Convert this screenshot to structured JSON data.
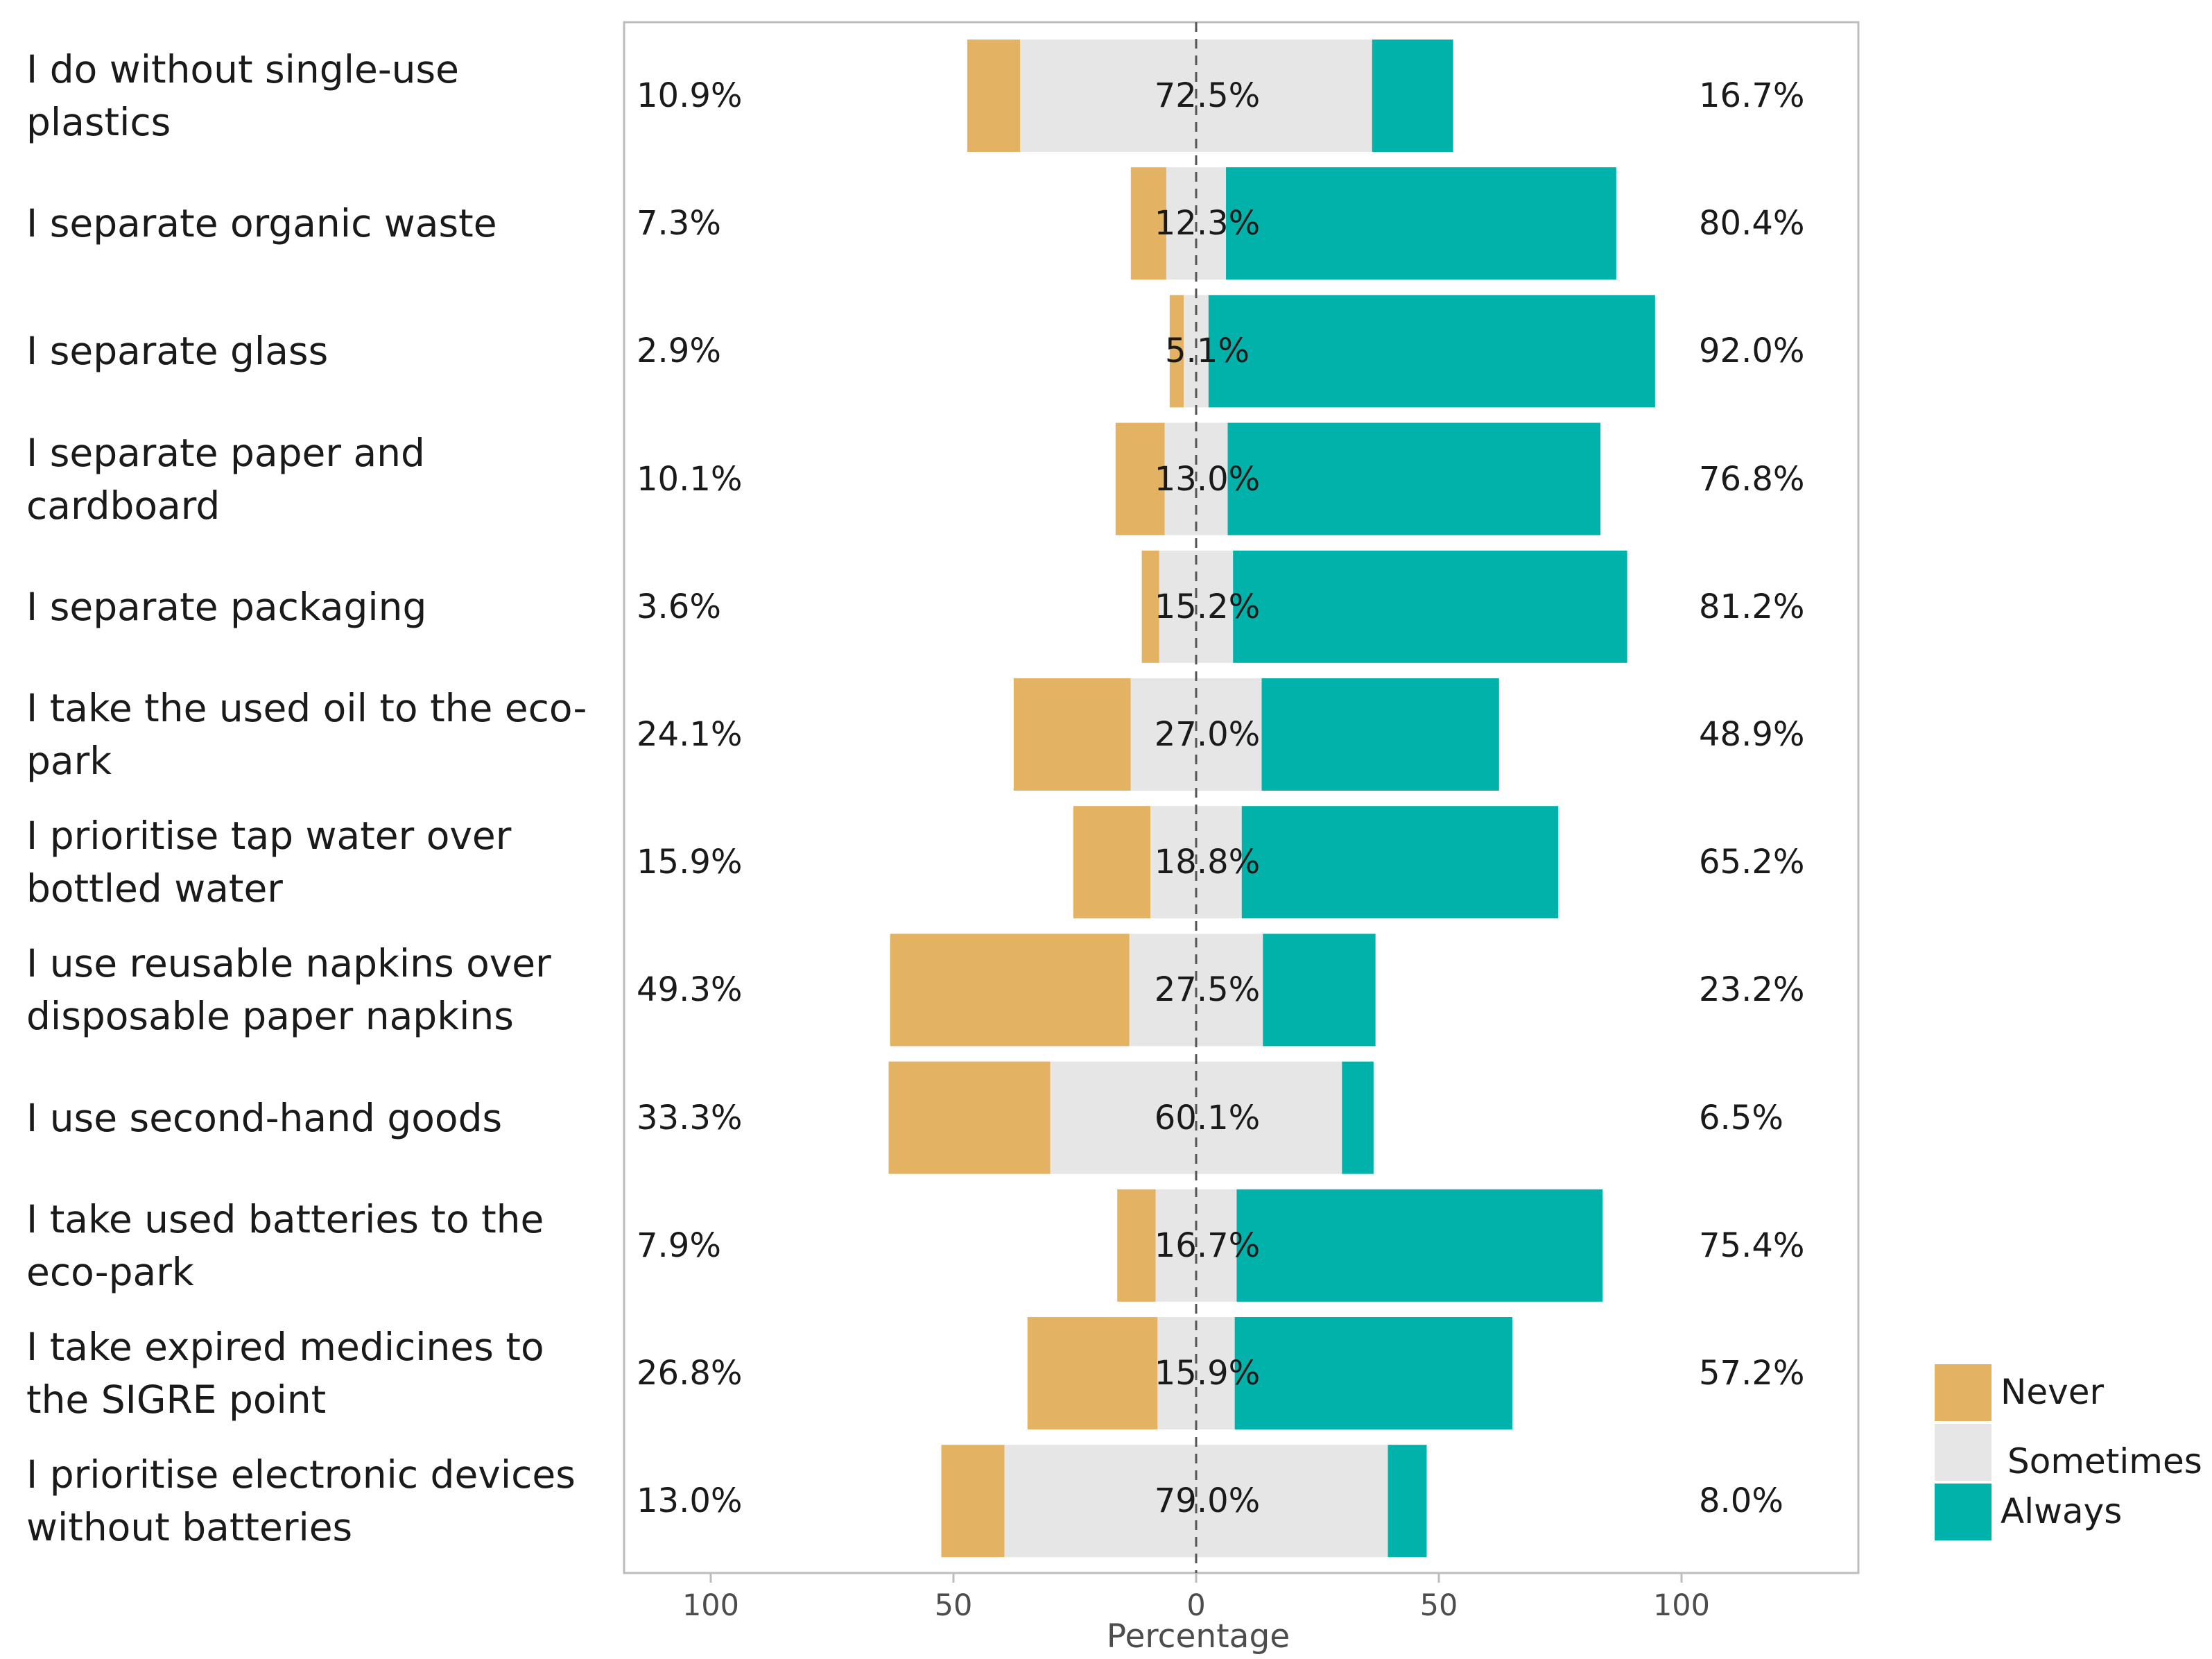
{
  "chart_data": {
    "type": "bar",
    "subtype": "diverging stacked bar",
    "xlabel": "Percentage",
    "xlim": [
      -100,
      100
    ],
    "x_ticks": [
      {
        "value": -100,
        "label": "100"
      },
      {
        "value": -50,
        "label": "50"
      },
      {
        "value": 0,
        "label": "0"
      },
      {
        "value": 50,
        "label": "50"
      },
      {
        "value": 100,
        "label": "100"
      }
    ],
    "legend_position": "right-bottom",
    "grid": false,
    "series": [
      {
        "name": "Never",
        "color": "#e3b262"
      },
      {
        "name": "Sometimes",
        "color": "#e6e6e6"
      },
      {
        "name": "Always",
        "color": "#00b2a9"
      }
    ],
    "categories": [
      {
        "label": "I do without single-use plastics",
        "never": 10.9,
        "sometimes": 72.5,
        "always": 16.7,
        "never_text": "10.9%",
        "sometimes_text": "72.5%",
        "always_text": "16.7%"
      },
      {
        "label": "I separate organic waste",
        "never": 7.3,
        "sometimes": 12.3,
        "always": 80.4,
        "never_text": "7.3%",
        "sometimes_text": "12.3%",
        "always_text": "80.4%"
      },
      {
        "label": "I separate glass",
        "never": 2.9,
        "sometimes": 5.1,
        "always": 92.0,
        "never_text": "2.9%",
        "sometimes_text": "5.1%",
        "always_text": "92.0%"
      },
      {
        "label": "I separate paper and cardboard",
        "never": 10.1,
        "sometimes": 13.0,
        "always": 76.8,
        "never_text": "10.1%",
        "sometimes_text": "13.0%",
        "always_text": "76.8%"
      },
      {
        "label": "I separate packaging",
        "never": 3.6,
        "sometimes": 15.2,
        "always": 81.2,
        "never_text": "3.6%",
        "sometimes_text": "15.2%",
        "always_text": "81.2%"
      },
      {
        "label": "I take the used oil to the eco-park",
        "never": 24.1,
        "sometimes": 27.0,
        "always": 48.9,
        "never_text": "24.1%",
        "sometimes_text": "27.0%",
        "always_text": "48.9%"
      },
      {
        "label": "I prioritise tap water over bottled water",
        "never": 15.9,
        "sometimes": 18.8,
        "always": 65.2,
        "never_text": "15.9%",
        "sometimes_text": "18.8%",
        "always_text": "65.2%"
      },
      {
        "label": "I use reusable napkins over disposable paper napkins",
        "never": 49.3,
        "sometimes": 27.5,
        "always": 23.2,
        "never_text": "49.3%",
        "sometimes_text": "27.5%",
        "always_text": "23.2%"
      },
      {
        "label": "I use second-hand goods",
        "never": 33.3,
        "sometimes": 60.1,
        "always": 6.5,
        "never_text": "33.3%",
        "sometimes_text": "60.1%",
        "always_text": "6.5%"
      },
      {
        "label": "I take used batteries to the eco-park",
        "never": 7.9,
        "sometimes": 16.7,
        "always": 75.4,
        "never_text": "7.9%",
        "sometimes_text": "16.7%",
        "always_text": "75.4%"
      },
      {
        "label": "I take expired medicines to the SIGRE point",
        "never": 26.8,
        "sometimes": 15.9,
        "always": 57.2,
        "never_text": "26.8%",
        "sometimes_text": "15.9%",
        "always_text": "57.2%"
      },
      {
        "label": "I prioritise electronic devices without batteries",
        "never": 13.0,
        "sometimes": 79.0,
        "always": 8.0,
        "never_text": "13.0%",
        "sometimes_text": "79.0%",
        "always_text": "8.0%"
      }
    ]
  }
}
